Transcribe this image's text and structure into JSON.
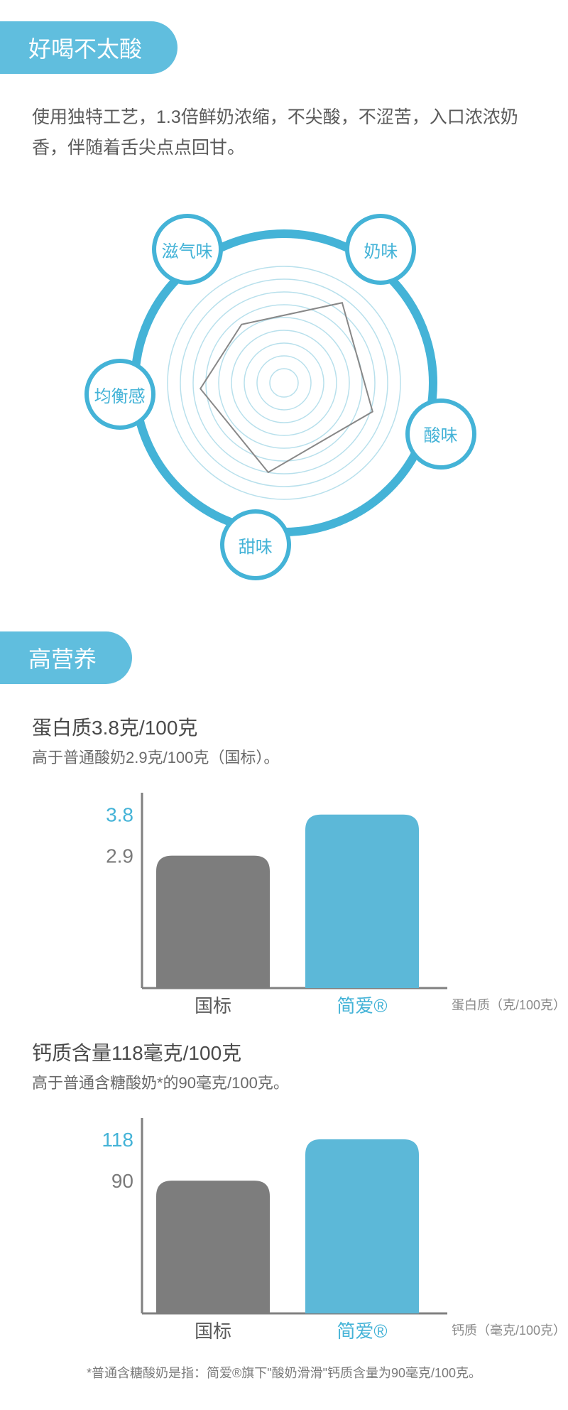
{
  "colors": {
    "primary": "#44b3d7",
    "primaryFill": "#5cb8d8",
    "headerBg": "#60bede",
    "grayBar": "#7d7d7d",
    "grayText": "#6a6a6a",
    "axisGray": "#808080",
    "radarRing": "#b8e0ec",
    "radarPolygon": "#888888",
    "white": "#ffffff"
  },
  "section1": {
    "title": "好喝不太酸",
    "description": "使用独特工艺，1.3倍鲜奶浓缩，不尖酸，不涩苦，入口浓浓奶香，伴随着舌尖点点回甘。",
    "radar": {
      "type": "radar",
      "axes": [
        {
          "label": "奶味",
          "angle": -54,
          "value": 0.85
        },
        {
          "label": "酸味",
          "angle": 18,
          "value": 0.8
        },
        {
          "label": "甜味",
          "angle": 100,
          "value": 0.78
        },
        {
          "label": "均衡感",
          "angle": 176,
          "value": 0.72
        },
        {
          "label": "滋气味",
          "angle": 234,
          "value": 0.62
        }
      ],
      "rings": 9,
      "outerRadius": 210,
      "innerRingRadius": 20,
      "ringStep": 18,
      "ringColor": "#b8e0ec",
      "ringStroke": 1.5,
      "polygonColor": "#888888",
      "polygonStroke": 2,
      "borderColor": "#44b3d7",
      "borderStroke": 12,
      "labelRadius": 232,
      "labelCircleRadius": 50,
      "labelFontsize": 24
    }
  },
  "section2": {
    "title": "高营养",
    "chart1": {
      "type": "bar",
      "title": "蛋白质3.8克/100克",
      "subtitle": "高于普通酸奶2.9克/100克（国标）。",
      "axisLabel": "蛋白质（克/100克）",
      "ylim": [
        0,
        4.2
      ],
      "yticks": [
        {
          "value": 2.9,
          "label": "2.9",
          "color": "#7a7a7a"
        },
        {
          "value": 3.8,
          "label": "3.8",
          "color": "#44b3d7"
        }
      ],
      "bars": [
        {
          "label": "国标",
          "value": 2.9,
          "color": "#7d7d7d",
          "labelColor": "#5a5a5a"
        },
        {
          "label": "简爱®",
          "value": 3.8,
          "color": "#5cb8d8",
          "labelColor": "#44b3d7"
        }
      ],
      "barWidth": 160,
      "barRadius": 22,
      "chartHeight": 260,
      "axisColor": "#808080",
      "tickFontsize": 28,
      "labelFontsize": 26,
      "axisLabelFontsize": 18
    },
    "chart2": {
      "type": "bar",
      "title": "钙质含量118毫克/100克",
      "subtitle": "高于普通含糖酸奶*的90毫克/100克。",
      "axisLabel": "钙质（毫克/100克）",
      "ylim": [
        0,
        130
      ],
      "yticks": [
        {
          "value": 90,
          "label": "90",
          "color": "#7a7a7a"
        },
        {
          "value": 118,
          "label": "118",
          "color": "#44b3d7"
        }
      ],
      "bars": [
        {
          "label": "国标",
          "value": 90,
          "color": "#7d7d7d",
          "labelColor": "#5a5a5a"
        },
        {
          "label": "简爱®",
          "value": 118,
          "color": "#5cb8d8",
          "labelColor": "#44b3d7"
        }
      ],
      "barWidth": 160,
      "barRadius": 22,
      "chartHeight": 260,
      "axisColor": "#808080",
      "tickFontsize": 28,
      "labelFontsize": 26,
      "axisLabelFontsize": 18
    },
    "footnote": "*普通含糖酸奶是指：简爱®旗下\"酸奶滑滑\"钙质含量为90毫克/100克。"
  }
}
